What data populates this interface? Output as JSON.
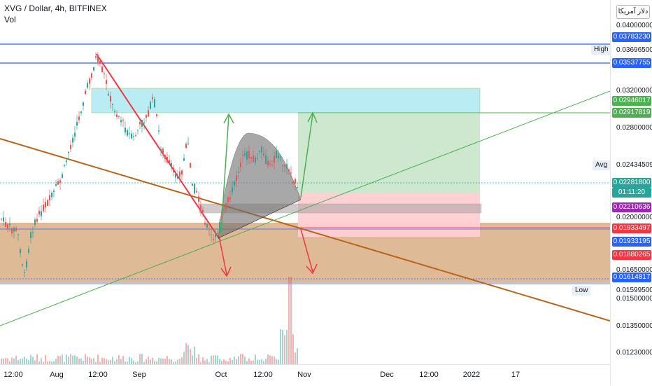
{
  "header": {
    "symbol_title": "XVG / Dollar, 4h, BITFINEX",
    "volume_label": "Vol"
  },
  "axis": {
    "currency_button": "دلار آمریکا",
    "ticks": [
      "0.04000000",
      "0.03696500",
      "0.03200000",
      "0.02800000",
      "0.02434509",
      "0.02000000",
      "0.01650000",
      "0.01599500",
      "0.01500000",
      "0.01350000",
      "0.01230000"
    ]
  },
  "tags": {
    "t1": "0.03783230",
    "t2": "0.03537755",
    "t3": "0.02946017",
    "t4": "0.02917819",
    "t5": "0.02281800",
    "t5b": "01:11:20",
    "t6": "0.02210636",
    "t7": "0.01933497",
    "t8": "0.01933195",
    "t9": "0.01880265",
    "t10": "0.01614817"
  },
  "side_labels": {
    "high": "High",
    "avg": "Avg",
    "low": "Low"
  },
  "x_axis": {
    "labels": [
      "12:00",
      "Aug",
      "12:00",
      "Sep",
      "Oct",
      "12:00",
      "Nov",
      "Dec",
      "12:00",
      "2022",
      "17"
    ]
  },
  "colors": {
    "up": "#26a69a",
    "down": "#ef5350",
    "tan": "#d4a373",
    "cyan": "#b2ebf2",
    "green_zone": "#c8e6c9",
    "red_zone": "#ffcdd2",
    "blue_line": "#2962ff",
    "brown_line": "#b8651b"
  }
}
